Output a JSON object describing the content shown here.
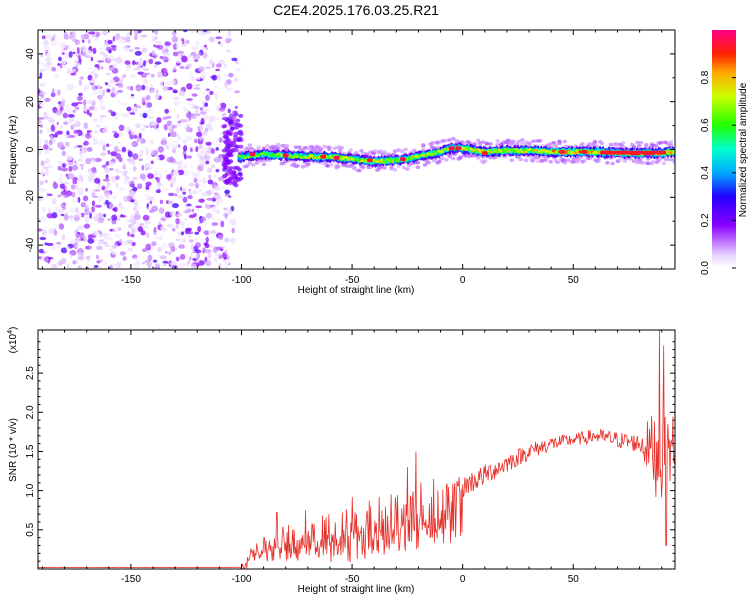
{
  "title": "C2E4.2025.176.03.25.R21",
  "chart_data": [
    {
      "type": "heatmap",
      "xlabel": "Height of straight line (km)",
      "ylabel": "Frequency (Hz)",
      "xlim": [
        -192,
        96
      ],
      "ylim": [
        -50,
        50
      ],
      "xticks": [
        -150,
        -100,
        -50,
        0,
        50
      ],
      "yticks": [
        -40,
        -20,
        0,
        20,
        40
      ],
      "colorbar": {
        "label": "Normalized spectral amplitude",
        "range": [
          0,
          1
        ],
        "ticks": [
          0.0,
          0.2,
          0.4,
          0.6,
          0.8
        ],
        "tick_labels": [
          "0.0",
          "0.2",
          "0.4",
          "0.6",
          "0.8"
        ]
      },
      "regions": [
        {
          "name": "noise",
          "x": [
            -192,
            -101
          ],
          "y": [
            -50,
            50
          ],
          "amplitude": [
            0.02,
            0.25
          ]
        },
        {
          "name": "signal",
          "x": [
            -101,
            96
          ],
          "center_y": 0,
          "halfwidth_y": 3,
          "amplitude": [
            0.3,
            1.0
          ]
        }
      ],
      "ridge_center": [
        [
          -100,
          -3
        ],
        [
          -90,
          -2
        ],
        [
          -80,
          -2.5
        ],
        [
          -70,
          -3
        ],
        [
          -60,
          -3
        ],
        [
          -50,
          -4
        ],
        [
          -40,
          -5
        ],
        [
          -30,
          -4.5
        ],
        [
          -20,
          -3
        ],
        [
          -10,
          -1
        ],
        [
          -5,
          0.5
        ],
        [
          0,
          0.5
        ],
        [
          10,
          -1
        ],
        [
          20,
          -0.5
        ],
        [
          30,
          -0.5
        ],
        [
          40,
          -1
        ],
        [
          50,
          -1
        ],
        [
          60,
          -1
        ],
        [
          70,
          -1.5
        ],
        [
          80,
          -1.5
        ],
        [
          90,
          -1.5
        ],
        [
          96,
          -1
        ]
      ]
    },
    {
      "type": "line",
      "xlabel": "Height of straight line (km)",
      "ylabel": "SNR (10 * v/v)",
      "y_multiplier": "(x10",
      "y_multiplier_exp": "4",
      "y_multiplier_close": ")",
      "xlim": [
        -192,
        96
      ],
      "ylim": [
        0,
        3.05
      ],
      "xticks": [
        -150,
        -100,
        -50,
        0,
        50
      ],
      "yticks": [
        0.5,
        1.0,
        1.5,
        2.0,
        2.5
      ],
      "ytick_labels": [
        "0.5",
        "1.0",
        "1.5",
        "2.0",
        "2.5"
      ],
      "color": "#e8302a",
      "envelope": [
        [
          -192,
          0.02
        ],
        [
          -101,
          0.02
        ],
        [
          -98,
          0.08
        ],
        [
          -95,
          0.25
        ],
        [
          -85,
          0.3
        ],
        [
          -70,
          0.35
        ],
        [
          -60,
          0.4
        ],
        [
          -50,
          0.45
        ],
        [
          -40,
          0.55
        ],
        [
          -30,
          0.6
        ],
        [
          -20,
          0.68
        ],
        [
          -10,
          0.8
        ],
        [
          -5,
          0.9
        ],
        [
          0,
          1.05
        ],
        [
          10,
          1.2
        ],
        [
          20,
          1.35
        ],
        [
          30,
          1.5
        ],
        [
          40,
          1.6
        ],
        [
          50,
          1.65
        ],
        [
          60,
          1.7
        ],
        [
          70,
          1.65
        ],
        [
          80,
          1.6
        ],
        [
          85,
          1.55
        ],
        [
          90,
          1.4
        ],
        [
          96,
          1.6
        ]
      ],
      "noise_amplitude": [
        [
          -101,
          0.0
        ],
        [
          -96,
          0.15
        ],
        [
          -80,
          0.25
        ],
        [
          -60,
          0.35
        ],
        [
          -40,
          0.4
        ],
        [
          -20,
          0.45
        ],
        [
          0,
          0.15
        ],
        [
          20,
          0.12
        ],
        [
          50,
          0.08
        ],
        [
          80,
          0.12
        ],
        [
          88,
          0.6
        ],
        [
          96,
          0.4
        ]
      ],
      "peaks": [
        [
          -84,
          0.72
        ],
        [
          -71,
          0.75
        ],
        [
          -50,
          0.92
        ],
        [
          -25,
          1.3
        ],
        [
          -21,
          1.5
        ],
        [
          -13,
          1.15
        ],
        [
          89,
          3.05
        ],
        [
          91,
          2.85
        ],
        [
          92,
          0.3
        ]
      ]
    }
  ]
}
